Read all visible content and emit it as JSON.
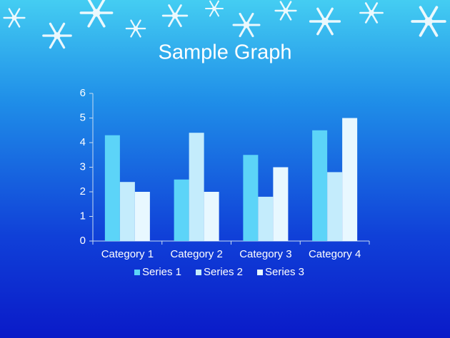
{
  "chart_data": {
    "type": "bar",
    "title": "Sample Graph",
    "categories": [
      "Category 1",
      "Category 2",
      "Category 3",
      "Category 4"
    ],
    "series": [
      {
        "name": "Series 1",
        "color": "#5cd4f8",
        "values": [
          4.3,
          2.5,
          3.5,
          4.5
        ]
      },
      {
        "name": "Series 2",
        "color": "#c4ecfc",
        "values": [
          2.4,
          4.4,
          1.8,
          2.8
        ]
      },
      {
        "name": "Series 3",
        "color": "#e8f8ff",
        "values": [
          2,
          2,
          3,
          5
        ]
      }
    ],
    "ylim": [
      0,
      6
    ],
    "yticks": [
      0,
      1,
      2,
      3,
      4,
      5,
      6
    ],
    "grid": false,
    "legend": "bottom"
  }
}
